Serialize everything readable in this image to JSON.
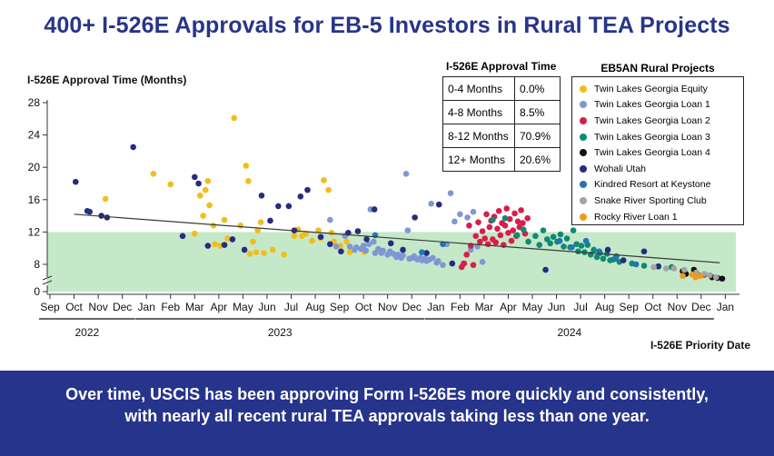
{
  "title": "400+ I-526E Approvals for EB-5 Investors in Rural TEA Projects",
  "footer": {
    "line1": "Over time, USCIS has been approving Form I-526Es more quickly and consistently,",
    "line2": "with nearly all recent rural TEA approvals taking less than one year."
  },
  "approval_table": {
    "title": "I-526E Approval Time",
    "rows": [
      {
        "range": "0-4 Months",
        "pct": "0.0%"
      },
      {
        "range": "4-8 Months",
        "pct": "8.5%"
      },
      {
        "range": "8-12 Months",
        "pct": "70.9%"
      },
      {
        "range": "12+ Months",
        "pct": "20.6%"
      }
    ]
  },
  "legend": {
    "title": "EB5AN Rural Projects",
    "items": [
      {
        "name": "Twin Lakes Georgia Equity",
        "color": "#f2bd1a"
      },
      {
        "name": "Twin Lakes Georgia Loan 1",
        "color": "#7f97d3"
      },
      {
        "name": "Twin Lakes Georgia Loan 2",
        "color": "#d81e48"
      },
      {
        "name": "Twin Lakes Georgia Loan 3",
        "color": "#0e8a75"
      },
      {
        "name": "Twin Lakes Georgia Loan 4",
        "color": "#111111"
      },
      {
        "name": "Wohali Utah",
        "color": "#262c7f"
      },
      {
        "name": "Kindred Resort at Keystone",
        "color": "#1f75ba"
      },
      {
        "name": "Snake River Sporting Club",
        "color": "#a4a4a4"
      },
      {
        "name": "Rocky River Loan 1",
        "color": "#ef9a1f"
      }
    ]
  },
  "chart_data": {
    "type": "scatter",
    "ylabel": "I-526E Approval Time (Months)",
    "xlabel": "I-526E Priority Date",
    "yticks": [
      0,
      8,
      12,
      16,
      20,
      24,
      28
    ],
    "ylim": [
      0,
      28
    ],
    "x_month_labels": [
      "Sep",
      "Oct",
      "Nov",
      "Dec",
      "Jan",
      "Feb",
      "Mar",
      "Apr",
      "May",
      "Jun",
      "Jul",
      "Aug",
      "Sep",
      "Oct",
      "Nov",
      "Dec",
      "Jan",
      "Feb",
      "Mar",
      "Apr",
      "May",
      "Jun",
      "Jul",
      "Aug",
      "Sep",
      "Oct",
      "Nov",
      "Dec",
      "Jan"
    ],
    "x_month_starts": [
      "2022-09",
      "2022-10",
      "2022-11",
      "2022-12",
      "2023-01",
      "2023-02",
      "2023-03",
      "2023-04",
      "2023-05",
      "2023-06",
      "2023-07",
      "2023-08",
      "2023-09",
      "2023-10",
      "2023-11",
      "2023-12",
      "2024-01",
      "2024-02",
      "2024-03",
      "2024-04",
      "2024-05",
      "2024-06",
      "2024-07",
      "2024-08",
      "2024-09",
      "2024-10",
      "2024-11",
      "2024-12",
      "2025-01"
    ],
    "years": [
      {
        "label": "2022",
        "from": "2022-09",
        "to": "2022-12"
      },
      {
        "label": "2023",
        "from": "2023-01",
        "to": "2023-12"
      },
      {
        "label": "2024",
        "from": "2024-01",
        "to": "2024-12"
      }
    ],
    "shaded_band": {
      "from": 0,
      "to": 12,
      "color": "#c5e8c9"
    },
    "trendline": {
      "start": [
        "2022-10-01",
        14.2
      ],
      "end": [
        "2024-12-25",
        8.2
      ]
    },
    "series": [
      {
        "name": "Twin Lakes Georgia Equity",
        "color": "#f2bd1a",
        "points": [
          [
            "2022-11-10",
            16.1
          ],
          [
            "2023-01-10",
            19.2
          ],
          [
            "2023-02-01",
            17.9
          ],
          [
            "2023-02-15",
            11.5
          ],
          [
            "2023-03-01",
            11.8
          ],
          [
            "2023-03-08",
            16.5
          ],
          [
            "2023-03-12",
            14
          ],
          [
            "2023-03-15",
            17.2
          ],
          [
            "2023-03-18",
            18.3
          ],
          [
            "2023-03-20",
            15.3
          ],
          [
            "2023-03-25",
            12.8
          ],
          [
            "2023-03-27",
            10.5
          ],
          [
            "2023-04-03",
            10.3
          ],
          [
            "2023-04-08",
            13.5
          ],
          [
            "2023-04-12",
            11.2
          ],
          [
            "2023-04-20",
            26.1
          ],
          [
            "2023-04-28",
            12.8
          ],
          [
            "2023-05-05",
            20.2
          ],
          [
            "2023-05-08",
            18.3
          ],
          [
            "2023-05-10",
            9.3
          ],
          [
            "2023-05-14",
            10.8
          ],
          [
            "2023-05-18",
            9.5
          ],
          [
            "2023-05-20",
            12.2
          ],
          [
            "2023-05-24",
            13.2
          ],
          [
            "2023-05-28",
            9.4
          ],
          [
            "2023-06-08",
            9.8
          ],
          [
            "2023-06-22",
            9.2
          ],
          [
            "2023-07-05",
            11.5
          ],
          [
            "2023-07-10",
            12.3
          ],
          [
            "2023-07-15",
            11.5
          ],
          [
            "2023-07-20",
            11.8
          ],
          [
            "2023-07-28",
            10.9
          ],
          [
            "2023-08-05",
            12.2
          ],
          [
            "2023-08-08",
            11.2
          ],
          [
            "2023-08-12",
            18.4
          ],
          [
            "2023-08-18",
            17.2
          ],
          [
            "2023-08-22",
            11.9
          ],
          [
            "2023-08-25",
            10.8
          ],
          [
            "2023-09-02",
            10.3
          ],
          [
            "2023-09-10",
            10.8
          ],
          [
            "2023-09-14",
            9.5
          ],
          [
            "2023-10-02",
            9.5
          ]
        ]
      },
      {
        "name": "Twin Lakes Georgia Loan 1",
        "color": "#7f97d3",
        "points": [
          [
            "2023-08-20",
            13.5
          ],
          [
            "2023-08-28",
            10.2
          ],
          [
            "2023-09-08",
            11.5
          ],
          [
            "2023-09-14",
            10.2
          ],
          [
            "2023-09-20",
            9.8
          ],
          [
            "2023-09-22",
            10.1
          ],
          [
            "2023-09-28",
            9.9
          ],
          [
            "2023-10-01",
            10.3
          ],
          [
            "2023-10-04",
            9.7
          ],
          [
            "2023-10-08",
            10.5
          ],
          [
            "2023-10-10",
            14.8
          ],
          [
            "2023-10-14",
            10.8
          ],
          [
            "2023-10-16",
            9.4
          ],
          [
            "2023-10-20",
            9.9
          ],
          [
            "2023-10-24",
            9.4
          ],
          [
            "2023-10-26",
            9.7
          ],
          [
            "2023-11-01",
            9.2
          ],
          [
            "2023-11-04",
            9.6
          ],
          [
            "2023-11-08",
            9.3
          ],
          [
            "2023-11-12",
            8.9
          ],
          [
            "2023-11-14",
            9.2
          ],
          [
            "2023-11-18",
            8.8
          ],
          [
            "2023-11-20",
            9.1
          ],
          [
            "2023-11-24",
            19.2
          ],
          [
            "2023-11-26",
            12.2
          ],
          [
            "2023-11-28",
            8.7
          ],
          [
            "2023-12-02",
            8.8
          ],
          [
            "2023-12-04",
            9.0
          ],
          [
            "2023-12-08",
            8.6
          ],
          [
            "2023-12-12",
            8.8
          ],
          [
            "2023-12-14",
            8.5
          ],
          [
            "2023-12-18",
            8.7
          ],
          [
            "2023-12-20",
            8.4
          ],
          [
            "2023-12-24",
            8.6
          ],
          [
            "2023-12-26",
            15.5
          ],
          [
            "2023-12-28",
            8.8
          ],
          [
            "2024-01-02",
            8.2
          ],
          [
            "2024-01-04",
            8.4
          ],
          [
            "2024-01-10",
            7.9
          ],
          [
            "2024-01-15",
            10.5
          ],
          [
            "2024-01-20",
            16.8
          ],
          [
            "2024-01-25",
            13.3
          ],
          [
            "2024-02-01",
            14.2
          ],
          [
            "2024-02-05",
            8.1
          ],
          [
            "2024-02-10",
            13.8
          ],
          [
            "2024-02-14",
            9.8
          ],
          [
            "2024-02-17",
            14.5
          ],
          [
            "2024-02-22",
            10.2
          ],
          [
            "2024-02-28",
            8.3
          ]
        ]
      },
      {
        "name": "Twin Lakes Georgia Loan 2",
        "color": "#d81e48",
        "points": [
          [
            "2024-02-03",
            7.6
          ],
          [
            "2024-02-06",
            8.1
          ],
          [
            "2024-02-09",
            9.2
          ],
          [
            "2024-02-12",
            12.8
          ],
          [
            "2024-02-14",
            10.3
          ],
          [
            "2024-02-17",
            7.9
          ],
          [
            "2024-02-20",
            11.5
          ],
          [
            "2024-02-23",
            13.2
          ],
          [
            "2024-02-25",
            10.8
          ],
          [
            "2024-02-28",
            12.1
          ],
          [
            "2024-03-02",
            11.2
          ],
          [
            "2024-03-04",
            14.2
          ],
          [
            "2024-03-06",
            10.5
          ],
          [
            "2024-03-08",
            12.6
          ],
          [
            "2024-03-10",
            13.4
          ],
          [
            "2024-03-12",
            11.1
          ],
          [
            "2024-03-14",
            13.9
          ],
          [
            "2024-03-16",
            10.7
          ],
          [
            "2024-03-18",
            12.4
          ],
          [
            "2024-03-20",
            14.6
          ],
          [
            "2024-03-22",
            11.6
          ],
          [
            "2024-03-24",
            13.1
          ],
          [
            "2024-03-26",
            10.4
          ],
          [
            "2024-03-28",
            12.8
          ],
          [
            "2024-03-30",
            14.9
          ],
          [
            "2024-04-01",
            11.9
          ],
          [
            "2024-04-03",
            13.6
          ],
          [
            "2024-04-05",
            10.9
          ],
          [
            "2024-04-07",
            12.2
          ],
          [
            "2024-04-09",
            14.3
          ],
          [
            "2024-04-11",
            11.5
          ],
          [
            "2024-04-13",
            13.3
          ],
          [
            "2024-04-15",
            12.6
          ],
          [
            "2024-04-17",
            14.7
          ],
          [
            "2024-04-19",
            13.1
          ],
          [
            "2024-04-22",
            11.8
          ],
          [
            "2024-04-25",
            13.7
          ]
        ]
      },
      {
        "name": "Twin Lakes Georgia Loan 3",
        "color": "#0e8a75",
        "points": [
          [
            "2024-03-12",
            13.5
          ],
          [
            "2024-03-28",
            13.7
          ],
          [
            "2024-04-12",
            11.6
          ],
          [
            "2024-04-20",
            12.3
          ],
          [
            "2024-04-26",
            10.8
          ],
          [
            "2024-05-05",
            11.5
          ],
          [
            "2024-05-10",
            10.4
          ],
          [
            "2024-05-15",
            12.2
          ],
          [
            "2024-05-20",
            11.1
          ],
          [
            "2024-05-24",
            10.6
          ],
          [
            "2024-05-28",
            11.4
          ],
          [
            "2024-06-02",
            10.8
          ],
          [
            "2024-06-06",
            11.7
          ],
          [
            "2024-06-10",
            10.2
          ],
          [
            "2024-06-14",
            11.2
          ],
          [
            "2024-06-18",
            10.1
          ],
          [
            "2024-06-22",
            12.2
          ],
          [
            "2024-06-26",
            10.5
          ],
          [
            "2024-06-28",
            9.6
          ],
          [
            "2024-07-02",
            10.3
          ],
          [
            "2024-07-06",
            9.5
          ],
          [
            "2024-07-10",
            10.4
          ],
          [
            "2024-07-14",
            9.2
          ],
          [
            "2024-07-18",
            9.8
          ],
          [
            "2024-07-22",
            8.9
          ],
          [
            "2024-07-26",
            9.4
          ],
          [
            "2024-07-30",
            8.7
          ],
          [
            "2024-08-04",
            9.3
          ],
          [
            "2024-08-08",
            8.5
          ],
          [
            "2024-08-12",
            8.6
          ],
          [
            "2024-08-16",
            9.0
          ],
          [
            "2024-08-20",
            8.3
          ],
          [
            "2024-09-05",
            8.1
          ],
          [
            "2024-09-20",
            7.8
          ],
          [
            "2024-10-08",
            7.7
          ],
          [
            "2024-10-25",
            7.6
          ]
        ]
      },
      {
        "name": "Twin Lakes Georgia Loan 4",
        "color": "#111111",
        "points": [
          [
            "2024-11-08",
            7.0
          ],
          [
            "2024-11-12",
            6.6
          ],
          [
            "2024-11-22",
            7.2
          ],
          [
            "2024-11-28",
            6.4
          ],
          [
            "2024-12-05",
            6.5
          ],
          [
            "2024-12-15",
            6.1
          ],
          [
            "2024-12-22",
            6.0
          ],
          [
            "2024-12-28",
            5.9
          ]
        ]
      },
      {
        "name": "Wohali Utah",
        "color": "#262c7f",
        "points": [
          [
            "2022-10-03",
            18.2
          ],
          [
            "2022-10-18",
            14.6
          ],
          [
            "2022-10-21",
            14.5
          ],
          [
            "2022-11-05",
            14.0
          ],
          [
            "2022-11-12",
            13.8
          ],
          [
            "2022-12-15",
            22.5
          ],
          [
            "2023-02-15",
            11.5
          ],
          [
            "2023-03-01",
            18.8
          ],
          [
            "2023-03-06",
            18.0
          ],
          [
            "2023-03-18",
            10.3
          ],
          [
            "2023-04-08",
            10.4
          ],
          [
            "2023-04-18",
            11.1
          ],
          [
            "2023-05-03",
            9.8
          ],
          [
            "2023-05-25",
            16.5
          ],
          [
            "2023-06-05",
            13.4
          ],
          [
            "2023-06-15",
            15.2
          ],
          [
            "2023-06-28",
            15.2
          ],
          [
            "2023-07-05",
            12.2
          ],
          [
            "2023-07-13",
            16.4
          ],
          [
            "2023-07-22",
            17.2
          ],
          [
            "2023-08-08",
            11.4
          ],
          [
            "2023-08-20",
            10.5
          ],
          [
            "2023-09-03",
            9.6
          ],
          [
            "2023-09-12",
            11.9
          ],
          [
            "2023-09-24",
            12.1
          ],
          [
            "2023-10-05",
            11.1
          ],
          [
            "2023-10-15",
            14.8
          ],
          [
            "2023-11-05",
            10.6
          ],
          [
            "2023-11-20",
            9.8
          ],
          [
            "2023-12-05",
            13.8
          ],
          [
            "2023-12-20",
            9.4
          ],
          [
            "2024-01-05",
            15.4
          ],
          [
            "2024-01-22",
            8.1
          ],
          [
            "2024-05-18",
            7.2
          ],
          [
            "2024-08-05",
            9.8
          ],
          [
            "2024-08-25",
            8.5
          ],
          [
            "2024-09-20",
            9.6
          ],
          [
            "2024-10-08",
            7.7
          ]
        ]
      },
      {
        "name": "Kindred Resort at Keystone",
        "color": "#1f75ba",
        "points": [
          [
            "2023-10-16",
            11.6
          ],
          [
            "2023-12-14",
            9.5
          ],
          [
            "2024-01-10",
            10.5
          ],
          [
            "2024-06-05",
            10.9
          ],
          [
            "2024-06-20",
            10.1
          ],
          [
            "2024-07-08",
            10.9
          ],
          [
            "2024-07-25",
            9.6
          ],
          [
            "2024-08-15",
            8.7
          ],
          [
            "2024-09-10",
            8.0
          ]
        ]
      },
      {
        "name": "Snake River Sporting Club",
        "color": "#a4a4a4",
        "points": [
          [
            "2024-10-02",
            7.6
          ],
          [
            "2024-10-18",
            7.4
          ],
          [
            "2024-10-28",
            7.4
          ],
          [
            "2024-11-10",
            7.2
          ],
          [
            "2024-11-25",
            6.8
          ],
          [
            "2024-12-05",
            6.6
          ],
          [
            "2024-12-12",
            6.4
          ],
          [
            "2024-12-20",
            6.1
          ]
        ]
      },
      {
        "name": "Rocky River Loan 1",
        "color": "#ef9a1f",
        "points": [
          [
            "2024-11-08",
            6.3
          ],
          [
            "2024-11-20",
            6.5
          ],
          [
            "2024-11-24",
            6.1
          ],
          [
            "2024-11-30",
            6.3
          ]
        ]
      }
    ]
  }
}
